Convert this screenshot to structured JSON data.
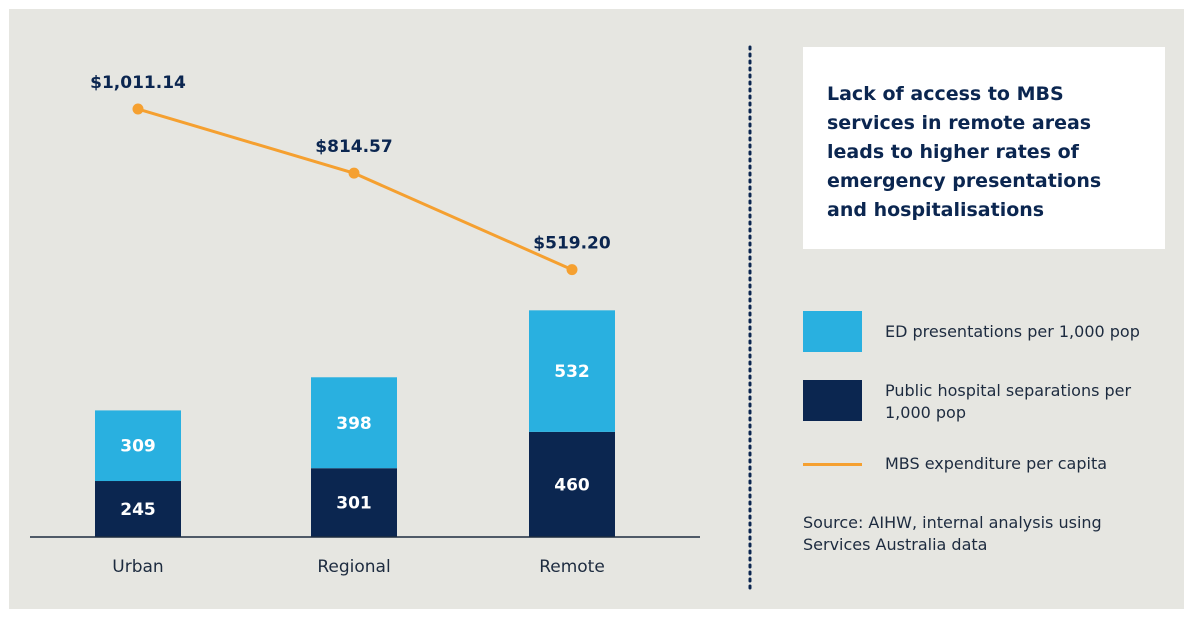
{
  "chart_data": {
    "type": "combo",
    "title": "Lack of access to MBS services in remote areas leads to higher rates of emergency presentations and hospitalisations",
    "source": "Source: AIHW, internal analysis using Services Australia data",
    "categories": [
      "Urban",
      "Regional",
      "Remote"
    ],
    "series": [
      {
        "name": "ED presentations per 1,000 pop",
        "color": "#29b0e0",
        "type": "bar",
        "values": [
          309,
          398,
          532
        ]
      },
      {
        "name": "Public hospital separations per 1,000 pop",
        "color": "#0b2650",
        "type": "bar",
        "values": [
          245,
          301,
          460
        ]
      },
      {
        "name": "MBS expenditure per capita",
        "color": "#f5a030",
        "type": "line",
        "axis": "y2",
        "values": [
          1011.14,
          814.57,
          519.2
        ],
        "value_labels": [
          "$1,011.14",
          "$814.57",
          "$519.20"
        ]
      }
    ],
    "ylim": [
      0,
      2000
    ],
    "y2lim": [
      -300,
      1100
    ],
    "stacked": true
  }
}
